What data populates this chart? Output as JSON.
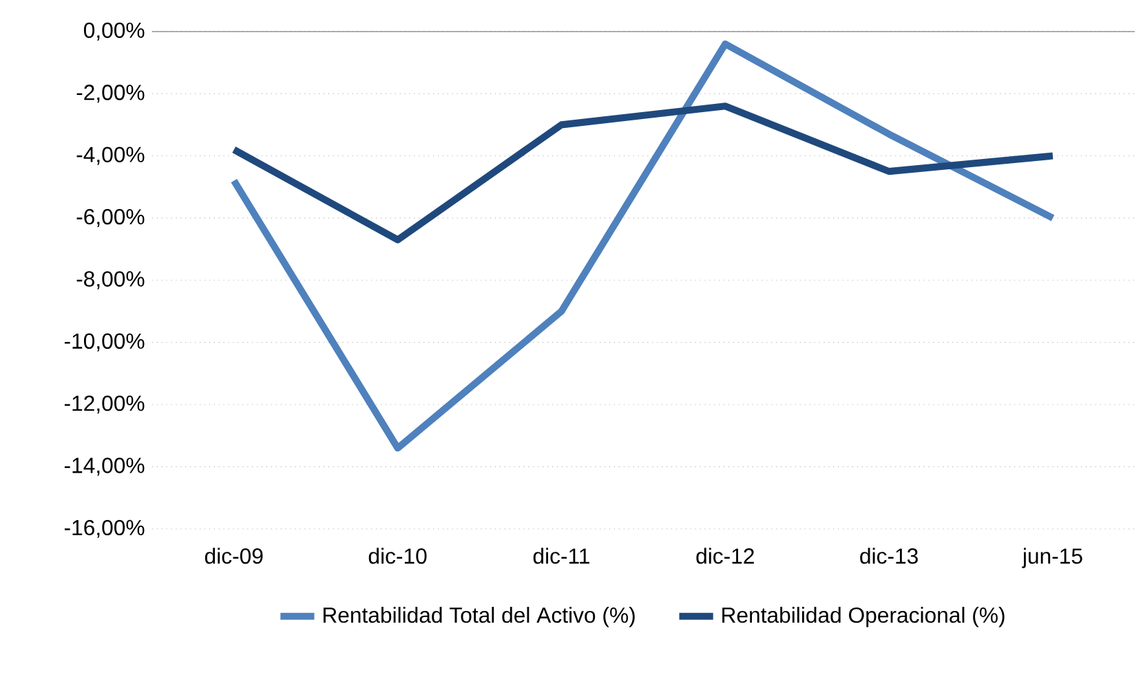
{
  "chart_data": {
    "type": "line",
    "categories": [
      "dic-09",
      "dic-10",
      "dic-11",
      "dic-12",
      "dic-13",
      "jun-15"
    ],
    "series": [
      {
        "name": "Rentabilidad Total  del Activo (%)",
        "color": "#4f81bd",
        "values": [
          -4.8,
          -13.4,
          -9.0,
          -0.4,
          -3.3,
          -6.0
        ]
      },
      {
        "name": "Rentabilidad Operacional (%)",
        "color": "#1f497d",
        "values": [
          -3.8,
          -6.7,
          -3.0,
          -2.4,
          -4.5,
          -4.0
        ]
      }
    ],
    "ylim": [
      -16,
      0
    ],
    "yticks": [
      {
        "value": 0,
        "label": "0,00%"
      },
      {
        "value": -2,
        "label": "-2,00%"
      },
      {
        "value": -4,
        "label": "-4,00%"
      },
      {
        "value": -6,
        "label": "-6,00%"
      },
      {
        "value": -8,
        "label": "-8,00%"
      },
      {
        "value": -10,
        "label": "-10,00%"
      },
      {
        "value": -12,
        "label": "-12,00%"
      },
      {
        "value": -14,
        "label": "-14,00%"
      },
      {
        "value": -16,
        "label": "-16,00%"
      }
    ],
    "grid": "y",
    "legend": "bottom",
    "marker": "none",
    "line_style": "solid"
  }
}
